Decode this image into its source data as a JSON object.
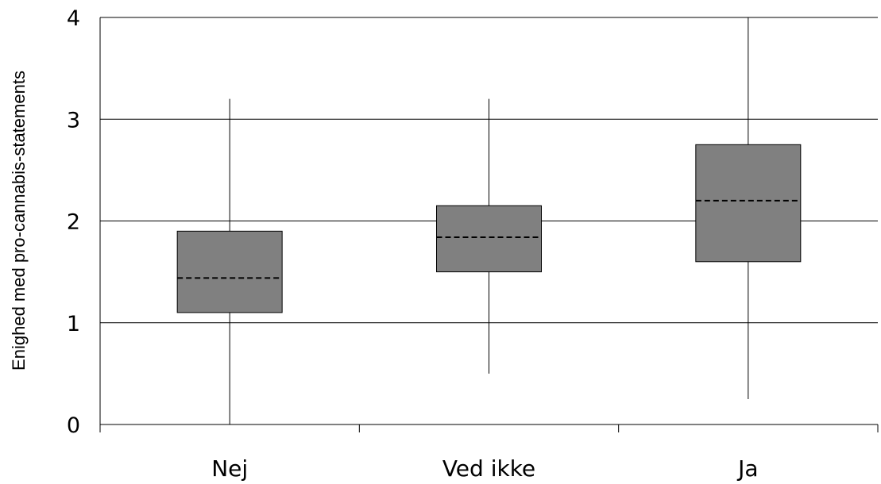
{
  "chart_data": {
    "type": "box",
    "title": "",
    "xlabel": "",
    "ylabel": "Enighed med pro-cannabis-statements",
    "categories": [
      "Nej",
      "Ved ikke",
      "Ja"
    ],
    "y_ticks": [
      "0",
      "1",
      "2",
      "3",
      "4"
    ],
    "ylim": [
      0,
      4
    ],
    "grid": "horizontal",
    "box_color": "#808080",
    "median_style": "dashed",
    "series": [
      {
        "category": "Nej",
        "min": 0,
        "q1": 1.1,
        "median": 1.44,
        "q3": 1.9,
        "max": 3.2
      },
      {
        "category": "Ved ikke",
        "min": 0.5,
        "q1": 1.5,
        "median": 1.84,
        "q3": 2.15,
        "max": 3.2
      },
      {
        "category": "Ja",
        "min": 0.25,
        "q1": 1.6,
        "median": 2.2,
        "q3": 2.75,
        "max": 4.0
      }
    ]
  }
}
